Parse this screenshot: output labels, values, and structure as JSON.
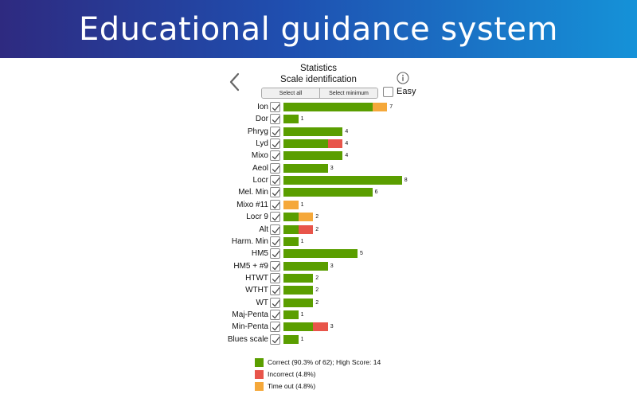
{
  "banner": {
    "title": "Educational guidance system"
  },
  "header": {
    "title": "Statistics",
    "subtitle": "Scale identification",
    "back_icon": "chevron-left-icon",
    "info_icon": "info-circle-icon"
  },
  "controls": {
    "select_all_label": "Select all",
    "select_minimum_label": "Select minimum",
    "easy_label": "Easy",
    "easy_checked": false
  },
  "colors": {
    "correct": "#5a9e00",
    "incorrect": "#e8554a",
    "timeout": "#f5a83a",
    "banner_start": "#2e2a80",
    "banner_end": "#1592d8"
  },
  "chart_data": {
    "type": "bar",
    "orientation": "horizontal",
    "stacked": true,
    "categories": [
      "Ion",
      "Dor",
      "Phryg",
      "Lyd",
      "Mixo",
      "Aeol",
      "Locr",
      "Mel. Min",
      "Mixo #11",
      "Locr 9",
      "Alt",
      "Harm. Min",
      "HM5",
      "HM5 + #9",
      "HTWT",
      "WTHT",
      "WT",
      "Maj-Penta",
      "Min-Penta",
      "Blues scale"
    ],
    "totals": [
      7,
      1,
      4,
      4,
      4,
      3,
      8,
      6,
      1,
      2,
      2,
      1,
      5,
      3,
      2,
      2,
      2,
      1,
      3,
      1
    ],
    "series": [
      {
        "name": "Correct (90.3% of 62); High Score: 14",
        "key": "correct",
        "values": [
          6,
          1,
          4,
          3,
          4,
          3,
          8,
          6,
          0,
          1,
          1,
          1,
          5,
          3,
          2,
          2,
          2,
          1,
          2,
          1
        ]
      },
      {
        "name": "Incorrect (4.8%)",
        "key": "incorrect",
        "values": [
          0,
          0,
          0,
          1,
          0,
          0,
          0,
          0,
          0,
          0,
          1,
          0,
          0,
          0,
          0,
          0,
          0,
          0,
          1,
          0
        ]
      },
      {
        "name": "Time out (4.8%)",
        "key": "timeout",
        "values": [
          1,
          0,
          0,
          0,
          0,
          0,
          0,
          0,
          1,
          1,
          0,
          0,
          0,
          0,
          0,
          0,
          0,
          0,
          0,
          0
        ]
      }
    ],
    "checked": [
      true,
      true,
      true,
      true,
      true,
      true,
      true,
      true,
      true,
      true,
      true,
      true,
      true,
      true,
      true,
      true,
      true,
      true,
      true,
      true
    ],
    "xlim": [
      0,
      8
    ],
    "grid": false,
    "legend_position": "bottom"
  }
}
